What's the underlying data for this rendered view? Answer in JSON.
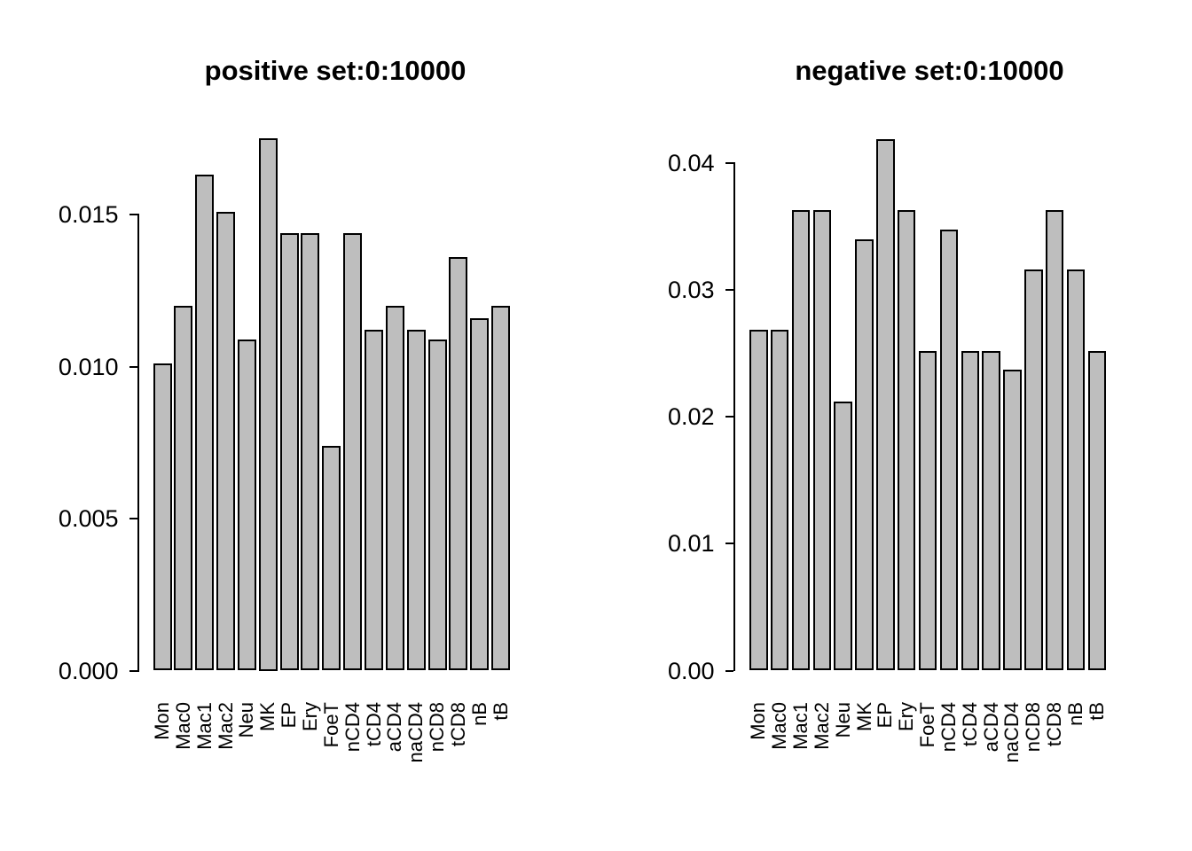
{
  "figure": {
    "background": "#ffffff",
    "text_color": "#000000",
    "bar_fill": "#bebebe",
    "bar_border": "#000000"
  },
  "chart_data": [
    {
      "type": "bar",
      "title": "positive set:0:10000",
      "categories": [
        "Mon",
        "Mac0",
        "Mac1",
        "Mac2",
        "Neu",
        "MK",
        "EP",
        "Ery",
        "FoeT",
        "nCD4",
        "tCD4",
        "aCD4",
        "naCD4",
        "nCD8",
        "tCD8",
        "nB",
        "tB"
      ],
      "values": [
        0.0101,
        0.012,
        0.0163,
        0.0151,
        0.0109,
        0.0175,
        0.0144,
        0.0144,
        0.0074,
        0.0144,
        0.0112,
        0.012,
        0.0112,
        0.0109,
        0.0136,
        0.0116,
        0.012
      ],
      "xlabel": "",
      "ylabel": "",
      "ylim": [
        0,
        0.0175
      ],
      "yticks": [
        {
          "label": "0.000",
          "value": 0.0
        },
        {
          "label": "0.005",
          "value": 0.005
        },
        {
          "label": "0.010",
          "value": 0.01
        },
        {
          "label": "0.015",
          "value": 0.015
        }
      ],
      "grid": "off",
      "legend": "none",
      "bar_fill": "#bebebe",
      "bar_border": "#000000"
    },
    {
      "type": "bar",
      "title": "negative set:0:10000",
      "categories": [
        "Mon",
        "Mac0",
        "Mac1",
        "Mac2",
        "Neu",
        "MK",
        "EP",
        "Ery",
        "FoeT",
        "nCD4",
        "tCD4",
        "aCD4",
        "naCD4",
        "nCD8",
        "tCD8",
        "nB",
        "tB"
      ],
      "values": [
        0.0269,
        0.0269,
        0.0363,
        0.0363,
        0.0212,
        0.034,
        0.0419,
        0.0363,
        0.0252,
        0.0348,
        0.0252,
        0.0252,
        0.0237,
        0.0316,
        0.0363,
        0.0316,
        0.0252
      ],
      "xlabel": "",
      "ylabel": "",
      "ylim": [
        0,
        0.0419
      ],
      "yticks": [
        {
          "label": "0.00",
          "value": 0.0
        },
        {
          "label": "0.01",
          "value": 0.01
        },
        {
          "label": "0.02",
          "value": 0.02
        },
        {
          "label": "0.03",
          "value": 0.03
        },
        {
          "label": "0.04",
          "value": 0.04
        }
      ],
      "grid": "off",
      "legend": "none",
      "bar_fill": "#bebebe",
      "bar_border": "#000000"
    }
  ]
}
